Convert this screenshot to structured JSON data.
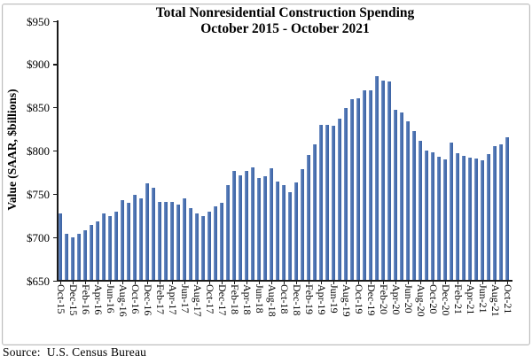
{
  "chart": {
    "title_line1": "Total Nonresidential Construction Spending",
    "title_line2": "October 2015 - October 2021",
    "y_axis_title": "Value (SAAR, $billions)",
    "source": "Source:  U.S. Census Bureau",
    "colors": {
      "bar_fill": "#4A72B2",
      "bar_edge": "#3D63A2",
      "axis": "#1A1A1A",
      "frame_border": "#BDBDBD",
      "text": "#000000"
    }
  },
  "chart_data": {
    "type": "bar",
    "title": "Total Nonresidential Construction Spending",
    "subtitle": "October 2015 - October 2021",
    "xlabel": "",
    "ylabel": "Value (SAAR, $billions)",
    "ylim": [
      650,
      950
    ],
    "y_tick_step": 50,
    "y_tick_labels": [
      "$650",
      "$700",
      "$750",
      "$800",
      "$850",
      "$900",
      "$950"
    ],
    "grid": false,
    "legend": "none",
    "source": "Source:  U.S. Census Bureau",
    "categories": [
      "Oct-15",
      "Nov-15",
      "Dec-15",
      "Jan-16",
      "Feb-16",
      "Mar-16",
      "Apr-16",
      "May-16",
      "Jun-16",
      "Jul-16",
      "Aug-16",
      "Sep-16",
      "Oct-16",
      "Nov-16",
      "Dec-16",
      "Jan-17",
      "Feb-17",
      "Mar-17",
      "Apr-17",
      "May-17",
      "Jun-17",
      "Jul-17",
      "Aug-17",
      "Sep-17",
      "Oct-17",
      "Nov-17",
      "Dec-17",
      "Jan-18",
      "Feb-18",
      "Mar-18",
      "Apr-18",
      "May-18",
      "Jun-18",
      "Jul-18",
      "Aug-18",
      "Sep-18",
      "Oct-18",
      "Nov-18",
      "Dec-18",
      "Jan-19",
      "Feb-19",
      "Mar-19",
      "Apr-19",
      "May-19",
      "Jun-19",
      "Jul-19",
      "Aug-19",
      "Sep-19",
      "Oct-19",
      "Nov-19",
      "Dec-19",
      "Jan-20",
      "Feb-20",
      "Mar-20",
      "Apr-20",
      "May-20",
      "Jun-20",
      "Jul-20",
      "Aug-20",
      "Sep-20",
      "Oct-20",
      "Nov-20",
      "Dec-20",
      "Jan-21",
      "Feb-21",
      "Mar-21",
      "Apr-21",
      "May-21",
      "Jun-21",
      "Jul-21",
      "Aug-21",
      "Sep-21",
      "Oct-21"
    ],
    "x_tick_labels": [
      "Oct-15",
      "Dec-15",
      "Feb-16",
      "Apr-16",
      "Jun-16",
      "Aug-16",
      "Oct-16",
      "Dec-16",
      "Feb-17",
      "Apr-17",
      "Jun-17",
      "Aug-17",
      "Oct-17",
      "Dec-17",
      "Feb-18",
      "Apr-18",
      "Jun-18",
      "Aug-18",
      "Oct-18",
      "Dec-18",
      "Feb-19",
      "Apr-19",
      "Jun-19",
      "Aug-19",
      "Oct-19",
      "Dec-19",
      "Feb-20",
      "Apr-20",
      "Jun-20",
      "Aug-20",
      "Oct-20",
      "Dec-20",
      "Feb-21",
      "Apr-21",
      "Jun-21",
      "Aug-21",
      "Oct-21"
    ],
    "values": [
      728,
      705,
      701,
      705,
      709,
      715,
      719,
      728,
      725,
      730,
      743,
      740,
      750,
      745,
      763,
      758,
      741,
      741,
      741,
      738,
      746,
      734,
      728,
      725,
      730,
      736,
      740,
      761,
      777,
      772,
      777,
      781,
      769,
      771,
      780,
      765,
      761,
      753,
      764,
      779,
      796,
      808,
      830,
      830,
      829,
      838,
      850,
      860,
      861,
      870,
      870,
      887,
      882,
      880,
      848,
      845,
      834,
      823,
      812,
      801,
      799,
      794,
      791,
      810,
      798,
      795,
      793,
      792,
      789,
      797,
      806,
      808,
      816
    ]
  }
}
